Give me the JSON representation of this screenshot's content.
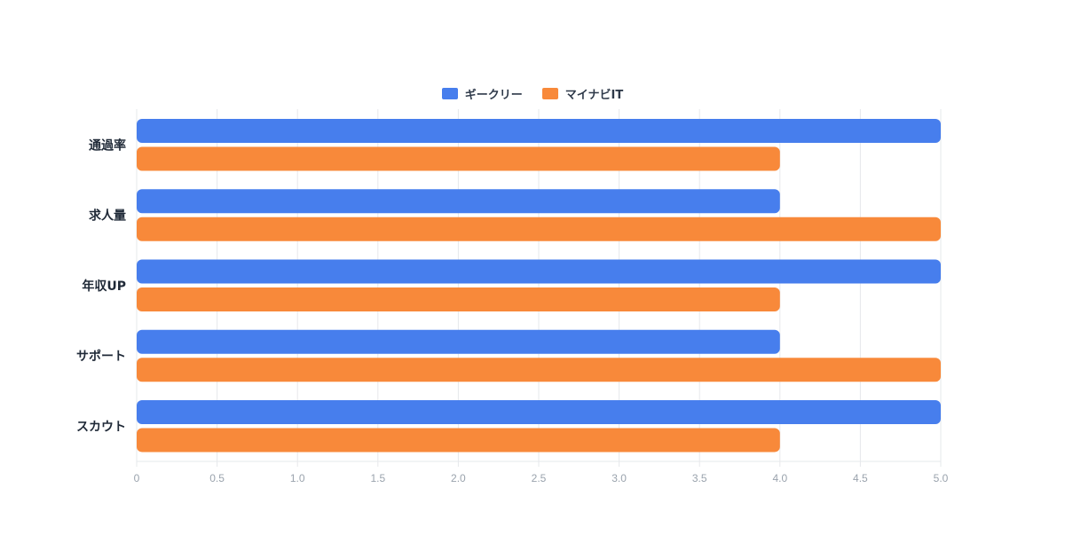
{
  "chart_data": {
    "type": "bar",
    "orientation": "horizontal",
    "categories": [
      "通過率",
      "求人量",
      "年収UP",
      "サポート",
      "スカウト"
    ],
    "series": [
      {
        "name": "ギークリー",
        "color": "#477EED",
        "values": [
          5,
          4,
          5,
          4,
          5
        ]
      },
      {
        "name": "マイナビIT",
        "color": "#F8893A",
        "values": [
          4,
          5,
          4,
          5,
          4
        ]
      }
    ],
    "xlim": [
      0,
      5
    ],
    "x_ticks": [
      "0",
      "0.5",
      "1.0",
      "1.5",
      "2.0",
      "2.5",
      "3.0",
      "3.5",
      "4.0",
      "4.5",
      "5.0"
    ],
    "x_tick_values": [
      0,
      0.5,
      1,
      1.5,
      2,
      2.5,
      3,
      3.5,
      4,
      4.5,
      5
    ],
    "grid": true,
    "legend_position": "top-center"
  }
}
